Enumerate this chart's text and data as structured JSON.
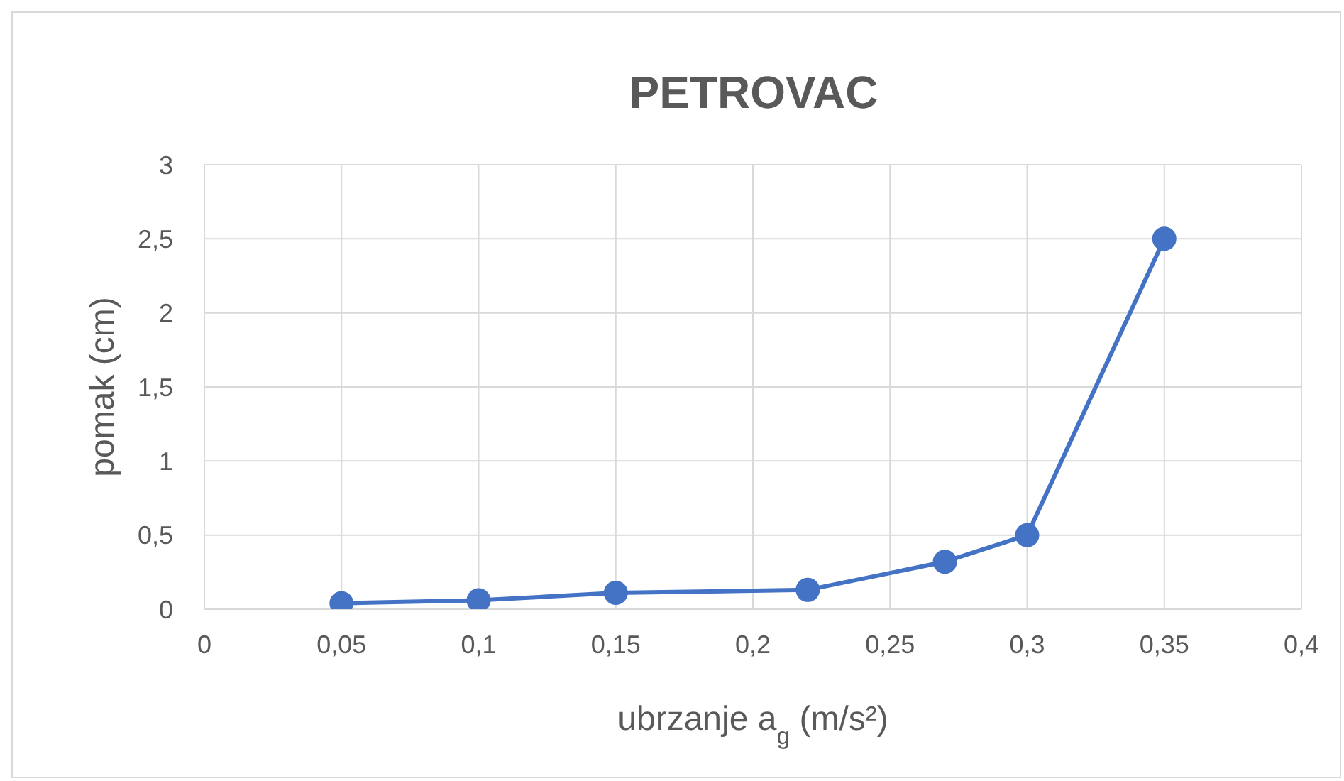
{
  "chart_data": {
    "type": "line",
    "title": "PETROVAC",
    "xlabel": "ubrzanje a$_{g}$ (m/s²)",
    "ylabel": "pomak (cm)",
    "x": [
      0.05,
      0.1,
      0.15,
      0.22,
      0.27,
      0.3,
      0.35
    ],
    "series": [
      {
        "color": "#4472c4",
        "values": [
          0.04,
          0.06,
          0.11,
          0.13,
          0.32,
          0.5,
          2.5
        ]
      }
    ],
    "xlim": [
      0,
      0.4
    ],
    "xticks": [
      0,
      {
        "value": 0.05,
        "label": "0,05"
      },
      {
        "value": 0.1,
        "label": "0,1"
      },
      {
        "value": 0.15,
        "label": "0,15"
      },
      {
        "value": 0.2,
        "label": "0,2"
      },
      {
        "value": 0.25,
        "label": "0,25"
      },
      {
        "value": 0.3,
        "label": "0,3"
      },
      {
        "value": 0.35,
        "label": "0,35"
      },
      {
        "value": 0.4,
        "label": "0,4"
      }
    ],
    "ylim": [
      0,
      3
    ],
    "yticks": [
      0,
      {
        "value": 0.5,
        "label": "0,5"
      },
      1,
      {
        "value": 1.5,
        "label": "1,5"
      },
      2,
      {
        "value": 2.5,
        "label": "2,5"
      },
      3
    ],
    "grid": true,
    "marker": "circle",
    "line_style": "solid"
  }
}
